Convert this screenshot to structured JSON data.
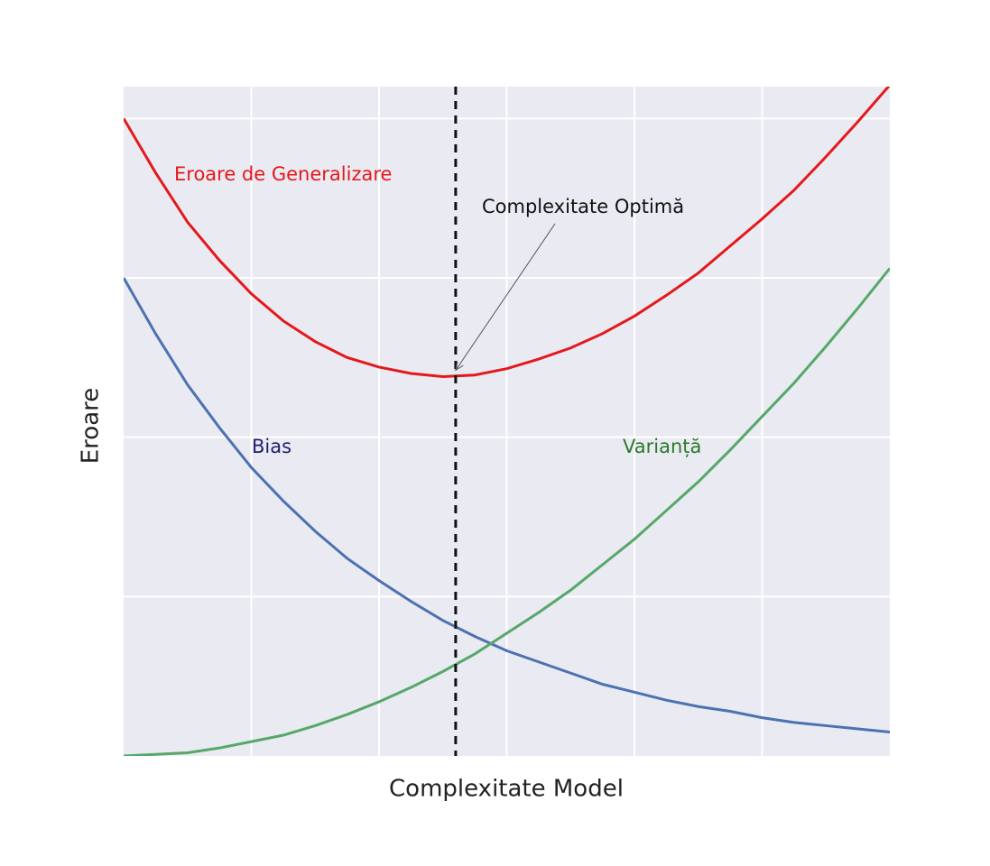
{
  "chart_data": {
    "type": "line",
    "xlabel": "Complexitate Model",
    "ylabel": "Eroare",
    "x": [
      0,
      0.25,
      0.5,
      0.75,
      1,
      1.25,
      1.5,
      1.75,
      2,
      2.25,
      2.5,
      2.75,
      3,
      3.25,
      3.5,
      3.75,
      4,
      4.25,
      4.5,
      4.75,
      5,
      5.25,
      5.5,
      5.75,
      6
    ],
    "series": [
      {
        "name": "Eroare de Generalizare",
        "color": "#e3191c",
        "label_color": "#e3191c",
        "values": [
          4.0,
          3.66,
          3.35,
          3.11,
          2.9,
          2.73,
          2.6,
          2.5,
          2.44,
          2.4,
          2.38,
          2.39,
          2.43,
          2.49,
          2.56,
          2.65,
          2.76,
          2.89,
          3.03,
          3.2,
          3.37,
          3.55,
          3.76,
          3.98,
          4.21
        ]
      },
      {
        "name": "Bias",
        "color": "#4c72b0",
        "label_color": "#1f1f6e",
        "values": [
          3.0,
          2.65,
          2.33,
          2.06,
          1.81,
          1.6,
          1.41,
          1.24,
          1.1,
          0.97,
          0.85,
          0.75,
          0.66,
          0.59,
          0.52,
          0.45,
          0.4,
          0.35,
          0.31,
          0.28,
          0.24,
          0.21,
          0.19,
          0.17,
          0.15
        ]
      },
      {
        "name": "Varianță",
        "color": "#55a868",
        "label_color": "#2a7a2a",
        "values": [
          0,
          0.01,
          0.02,
          0.05,
          0.09,
          0.13,
          0.19,
          0.26,
          0.34,
          0.43,
          0.53,
          0.64,
          0.77,
          0.9,
          1.04,
          1.2,
          1.36,
          1.54,
          1.72,
          1.92,
          2.13,
          2.34,
          2.57,
          2.81,
          3.06
        ]
      }
    ],
    "annotation": {
      "text": "Complexitate Optimă",
      "x": 2.6,
      "y": 2.42
    },
    "xlim": [
      0,
      6
    ],
    "ylim": [
      0,
      4.2
    ],
    "xticks": [
      1,
      2,
      3,
      4,
      5
    ],
    "yticks": [
      1,
      2,
      3,
      4
    ],
    "grid": true,
    "background": "#eaeaf2"
  }
}
